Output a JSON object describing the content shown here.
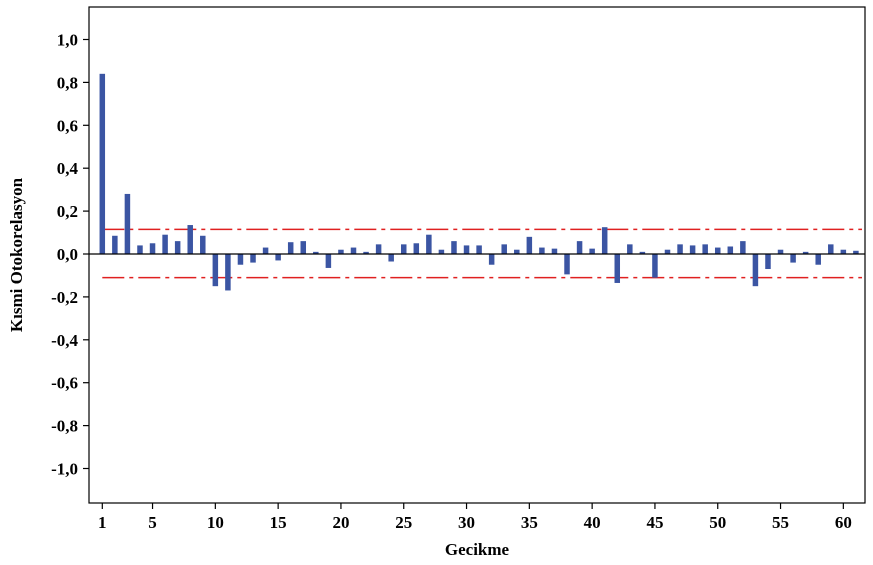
{
  "chart_data": {
    "type": "bar",
    "xlabel": "Gecikme",
    "ylabel": "Kısmi Otokorelasyon",
    "ylim": [
      -1.1,
      1.1
    ],
    "yticks": [
      1.0,
      0.8,
      0.6,
      0.4,
      0.2,
      0.0,
      -0.2,
      -0.4,
      -0.6,
      -0.8,
      -1.0
    ],
    "ytick_labels": [
      "1,0",
      "0,8",
      "0,6",
      "0,4",
      "0,2",
      "0,0",
      "-0,2",
      "-0,4",
      "-0,6",
      "-0,8",
      "-1,0"
    ],
    "xticks": [
      1,
      5,
      10,
      15,
      20,
      25,
      30,
      35,
      40,
      45,
      50,
      55,
      60
    ],
    "xtick_labels": [
      "1",
      "5",
      "10",
      "15",
      "20",
      "25",
      "30",
      "35",
      "40",
      "45",
      "50",
      "55",
      "60"
    ],
    "lags": [
      1,
      2,
      3,
      4,
      5,
      6,
      7,
      8,
      9,
      10,
      11,
      12,
      13,
      14,
      15,
      16,
      17,
      18,
      19,
      20,
      21,
      22,
      23,
      24,
      25,
      26,
      27,
      28,
      29,
      30,
      31,
      32,
      33,
      34,
      35,
      36,
      37,
      38,
      39,
      40,
      41,
      42,
      43,
      44,
      45,
      46,
      47,
      48,
      49,
      50,
      51,
      52,
      53,
      54,
      55,
      56,
      57,
      58,
      59,
      60,
      61
    ],
    "values": [
      0.84,
      0.085,
      0.28,
      0.04,
      0.05,
      0.09,
      0.06,
      0.135,
      0.085,
      -0.15,
      -0.17,
      -0.05,
      -0.04,
      0.03,
      -0.03,
      0.055,
      0.06,
      0.01,
      -0.065,
      0.02,
      0.03,
      0.01,
      0.045,
      -0.035,
      0.045,
      0.05,
      0.09,
      0.02,
      0.06,
      0.04,
      0.04,
      -0.05,
      0.045,
      0.02,
      0.08,
      0.03,
      0.025,
      -0.095,
      0.06,
      0.025,
      0.125,
      -0.135,
      0.045,
      0.01,
      -0.11,
      0.02,
      0.045,
      0.04,
      0.045,
      0.03,
      0.035,
      0.06,
      -0.15,
      -0.07,
      0.02,
      -0.04,
      0.01,
      -0.05,
      0.045,
      0.02,
      0.015
    ],
    "confidence_limits": [
      0.115,
      -0.11
    ],
    "bar_color": "#3b55a3",
    "limit_color": "#e02020"
  }
}
